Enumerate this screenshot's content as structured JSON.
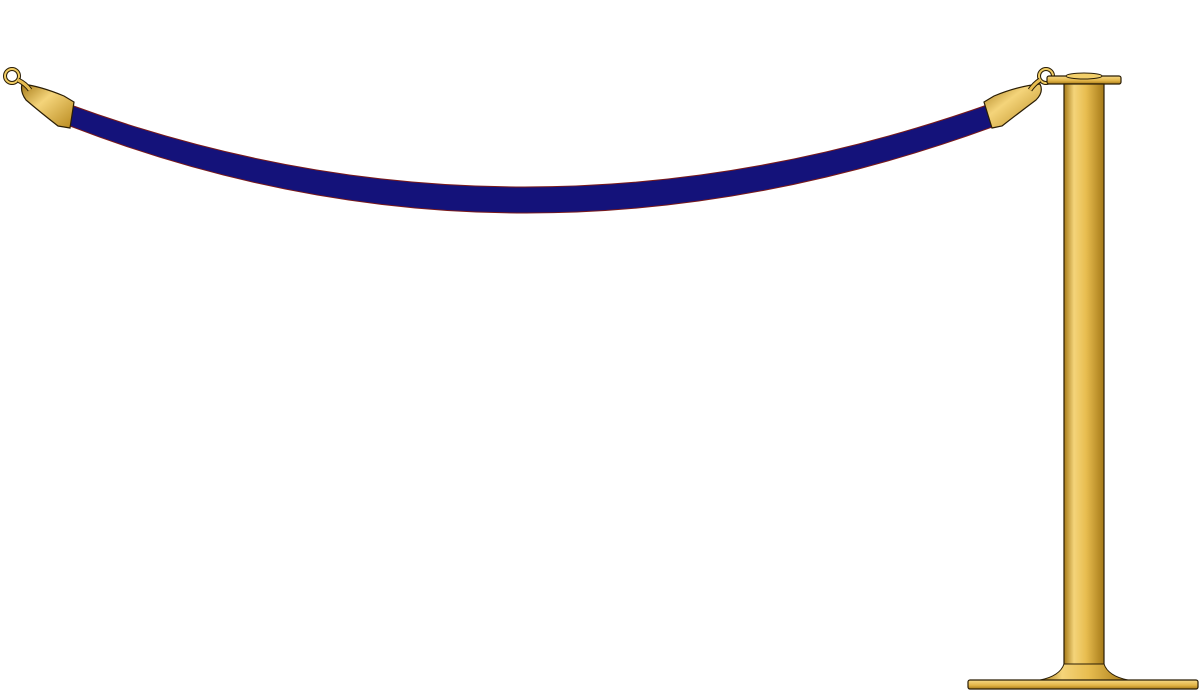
{
  "colors": {
    "background": "#ffffff",
    "rope": "#14127a",
    "rope_edge": "#7a1a1a",
    "brass_light": "#f2cf6a",
    "brass_mid": "#e0b23c",
    "brass_dark": "#9c7418",
    "outline": "#2a1d05"
  },
  "icons": {
    "left_hook": "hook-icon",
    "right_hook": "hook-icon"
  }
}
